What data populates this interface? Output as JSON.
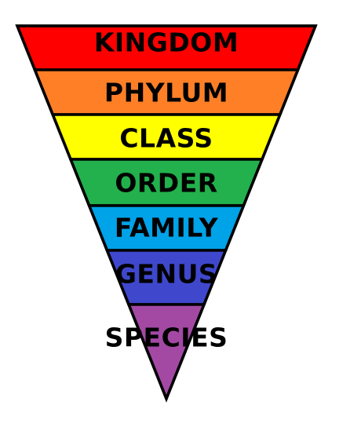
{
  "diagram": {
    "levels": [
      {
        "label": "KINGDOM",
        "color": "#ff0000"
      },
      {
        "label": "PHYLUM",
        "color": "#ff7f27"
      },
      {
        "label": "CLASS",
        "color": "#ffff00"
      },
      {
        "label": "ORDER",
        "color": "#22b14c"
      },
      {
        "label": "FAMILY",
        "color": "#00a2e8"
      },
      {
        "label": "GENUS",
        "color": "#3f48cc"
      },
      {
        "label": "SPECIES",
        "color": "#a349a4"
      }
    ],
    "outline_color": "#000000"
  }
}
